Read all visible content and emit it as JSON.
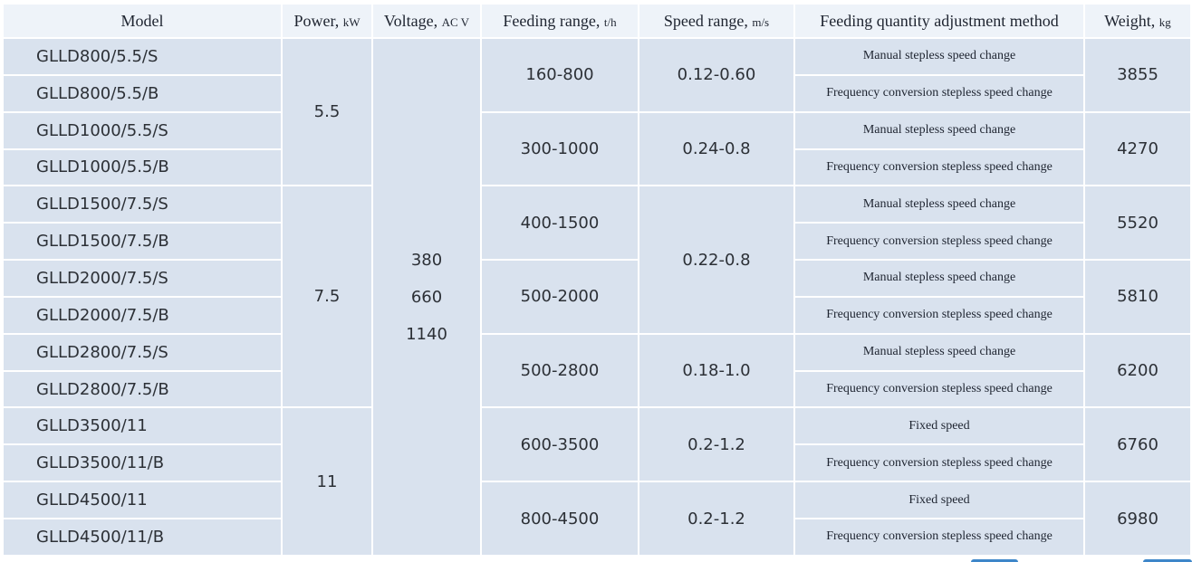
{
  "headers": {
    "model": "Model",
    "power": "Power,",
    "power_unit": "kW",
    "voltage": "Voltage,",
    "voltage_unit": "AC V",
    "feeding": "Feeding range,",
    "feeding_unit": "t/h",
    "speed": "Speed range,",
    "speed_unit": "m/s",
    "method": "Feeding quantity adjustment method",
    "weight": "Weight,",
    "weight_unit": "kg"
  },
  "voltage_values": [
    "380",
    "660",
    "1140"
  ],
  "power_groups": [
    "5.5",
    "7.5",
    "11"
  ],
  "speed_groups": [
    "0.12-0.60",
    "0.24-0.8",
    "0.22-0.8",
    "0.18-1.0",
    "0.2-1.2",
    "0.2-1.2"
  ],
  "pairs": [
    {
      "models": [
        "GLLD800/5.5/S",
        "GLLD800/5.5/B"
      ],
      "feeding": "160-800",
      "methods": [
        "Manual stepless speed change",
        "Frequency conversion stepless speed change"
      ],
      "weight": "3855"
    },
    {
      "models": [
        "GLLD1000/5.5/S",
        "GLLD1000/5.5/B"
      ],
      "feeding": "300-1000",
      "methods": [
        "Manual stepless speed change",
        "Frequency conversion stepless speed change"
      ],
      "weight": "4270"
    },
    {
      "models": [
        "GLLD1500/7.5/S",
        "GLLD1500/7.5/B"
      ],
      "feeding": "400-1500",
      "methods": [
        "Manual stepless speed change",
        "Frequency conversion stepless speed change"
      ],
      "weight": "5520"
    },
    {
      "models": [
        "GLLD2000/7.5/S",
        "GLLD2000/7.5/B"
      ],
      "feeding": "500-2000",
      "methods": [
        "Manual stepless speed change",
        "Frequency conversion stepless speed change"
      ],
      "weight": "5810"
    },
    {
      "models": [
        "GLLD2800/7.5/S",
        "GLLD2800/7.5/B"
      ],
      "feeding": "500-2800",
      "methods": [
        "Manual stepless speed change",
        "Frequency conversion stepless speed change"
      ],
      "weight": "6200"
    },
    {
      "models": [
        "GLLD3500/11",
        "GLLD3500/11/B"
      ],
      "feeding": "600-3500",
      "methods": [
        "Fixed speed",
        "Frequency conversion stepless speed change"
      ],
      "weight": "6760"
    },
    {
      "models": [
        "GLLD4500/11",
        "GLLD4500/11/B"
      ],
      "feeding": "800-4500",
      "methods": [
        "Fixed speed",
        "Frequency conversion stepless speed change"
      ],
      "weight": "6980"
    }
  ]
}
